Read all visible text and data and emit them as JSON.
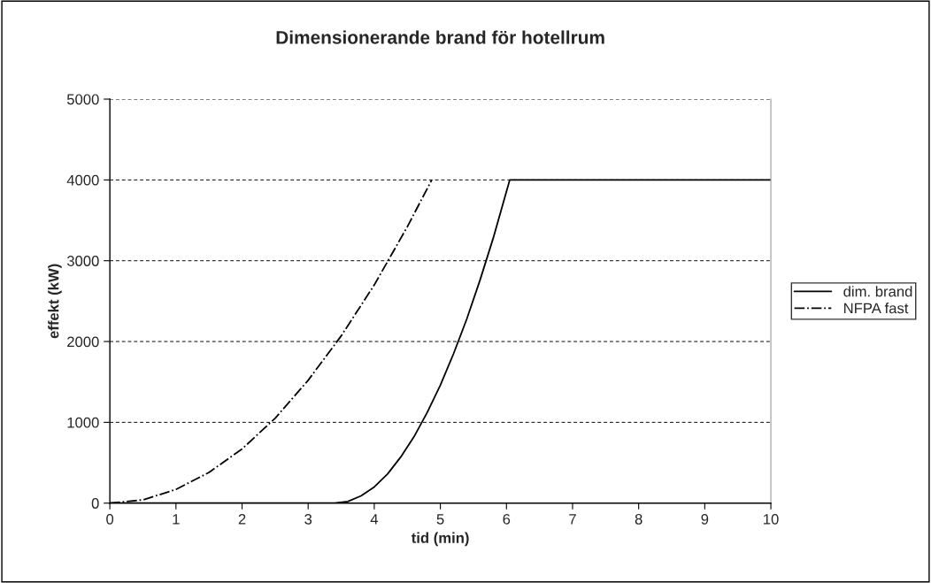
{
  "chart_data": {
    "type": "line",
    "title": "Dimensionerande brand för hotellrum",
    "xlabel": "tid (min)",
    "ylabel": "effekt (kW)",
    "xlim": [
      0,
      10
    ],
    "xticks": [
      0,
      1,
      2,
      3,
      4,
      5,
      6,
      7,
      8,
      9,
      10
    ],
    "ylim": [
      0,
      5000
    ],
    "yticks": [
      0,
      1000,
      2000,
      3000,
      4000,
      5000
    ],
    "grid": "y",
    "legend": "right",
    "marker": "none",
    "series": [
      {
        "name": "dim. brand",
        "color": "#000000",
        "line_style": "solid",
        "x": [
          0,
          3.4,
          3.6,
          3.8,
          4.0,
          4.2,
          4.4,
          4.6,
          4.8,
          5.0,
          5.2,
          5.4,
          5.6,
          5.8,
          6.05,
          10
        ],
        "values": [
          0,
          0,
          20,
          90,
          200,
          360,
          570,
          820,
          1120,
          1460,
          1850,
          2280,
          2760,
          3280,
          4000,
          4000
        ]
      },
      {
        "name": "NFPA fast",
        "color": "#000000",
        "line_style": "dashdot",
        "x": [
          0,
          0.5,
          1,
          1.5,
          2,
          2.5,
          3,
          3.5,
          4,
          4.5,
          4.87
        ],
        "values": [
          0,
          40,
          170,
          380,
          670,
          1050,
          1520,
          2070,
          2700,
          3420,
          4000
        ]
      }
    ]
  }
}
